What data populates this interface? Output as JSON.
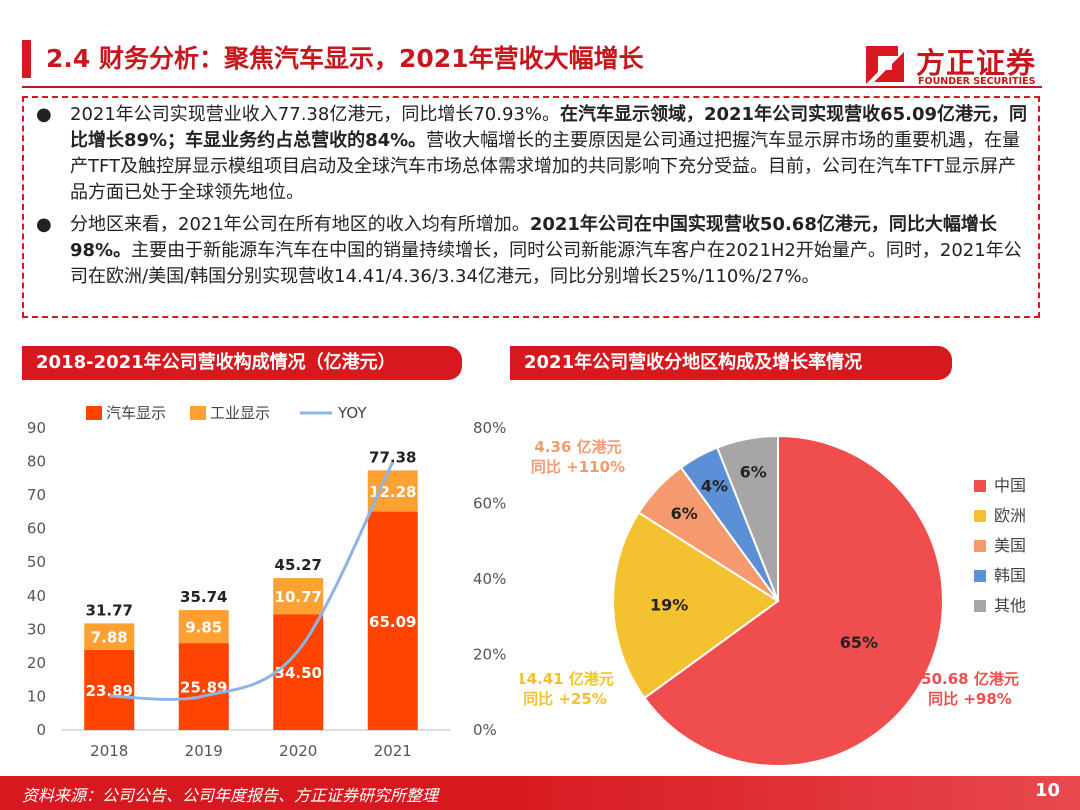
{
  "header": {
    "title": "2.4 财务分析：聚焦汽车显示，2021年营收大幅增长",
    "logo_cn": "方正证券",
    "logo_en": "FOUNDER SECURITIES"
  },
  "bullets": [
    {
      "symbol": "●",
      "p1": "2021年公司实现营业收入77.38亿港元，同比增长70.93%。",
      "b1": "在汽车显示领域，2021年公司实现营收65.09亿港元，同比增长89%；车显业务约占总营收的84%。",
      "p2": "营收大幅增长的主要原因是公司通过把握汽车显示屏市场的重要机遇，在量产TFT及触控屏显示模组项目启动及全球汽车市场总体需求增加的共同影响下充分受益。目前，公司在汽车TFT显示屏产品方面已处于全球领先地位。"
    },
    {
      "symbol": "●",
      "p1": "分地区来看，2021年公司在所有地区的收入均有所增加。",
      "b1": "2021年公司在中国实现营收50.68亿港元，同比大幅增长98%。",
      "p2": "主要由于新能源车汽车在中国的销量持续增长，同时公司新能源汽车客户在2021H2开始量产。同时，2021年公司在欧洲/美国/韩国分别实现营收14.41/4.36/3.34亿港元，同比分别增长25%/110%/27%。"
    }
  ],
  "left_header": "2018-2021年公司营收构成情况（亿港元）",
  "right_header": "2021年公司营收分地区构成及增长率情况",
  "colors": {
    "accent": "#d7191f",
    "auto": "#ff4300",
    "industrial": "#ffa033",
    "yoy": "#8db4e2",
    "china": "#f04e4e",
    "europe": "#f4c231",
    "usa": "#f49a6e",
    "korea": "#5b8fd6",
    "other": "#a6a6a6"
  },
  "chart_data": [
    {
      "type": "bar",
      "stacked": true,
      "categories": [
        "2018",
        "2019",
        "2020",
        "2021"
      ],
      "series": [
        {
          "name": "汽车显示",
          "values": [
            23.89,
            25.89,
            34.5,
            65.09
          ],
          "labels": [
            "23.89",
            "25.89",
            "34.50",
            "65.09"
          ]
        },
        {
          "name": "工业显示",
          "values": [
            7.88,
            9.85,
            10.77,
            12.28
          ],
          "labels": [
            "7.88",
            "9.85",
            "10.77",
            "12.28"
          ]
        }
      ],
      "totals": [
        "31.77",
        "35.74",
        "45.27",
        "77.38"
      ],
      "line_series": {
        "name": "YOY",
        "axis": "right",
        "values": [
          9,
          9,
          21,
          71
        ]
      },
      "ylim": [
        0,
        90
      ],
      "yticks": [
        "0",
        "10",
        "20",
        "30",
        "40",
        "50",
        "60",
        "70",
        "80",
        "90"
      ],
      "y2lim": [
        0,
        80
      ],
      "y2ticks": [
        "0%",
        "20%",
        "40%",
        "60%",
        "80%"
      ],
      "legend": "top"
    },
    {
      "type": "pie",
      "slices": [
        {
          "name": "中国",
          "value": 65,
          "label": "65%"
        },
        {
          "name": "欧洲",
          "value": 19,
          "label": "19%"
        },
        {
          "name": "美国",
          "value": 6,
          "label": "6%"
        },
        {
          "name": "韩国",
          "value": 4,
          "label": "4%"
        },
        {
          "name": "其他",
          "value": 6,
          "label": "6%"
        }
      ],
      "annotations": [
        {
          "line1": "50.68 亿港元",
          "line2": "同比 +98%"
        },
        {
          "line1": "14.41 亿港元",
          "line2": "同比 +25%"
        },
        {
          "line1": "4.36 亿港元",
          "line2": "同比 +110%"
        }
      ],
      "legend": "right"
    }
  ],
  "footer": {
    "source": "资料来源：公司公告、公司年度报告、方正证券研究所整理",
    "page": "10"
  }
}
